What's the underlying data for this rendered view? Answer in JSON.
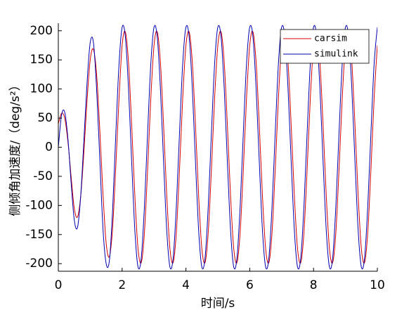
{
  "chart_data": {
    "type": "line",
    "x_label": "时间/s",
    "y_label": "侧倾角加速度/（deg/s²）",
    "x": [
      0,
      0.1,
      0.2,
      0.3,
      0.4,
      0.5,
      0.6,
      0.7,
      0.8,
      0.9,
      1,
      1.1,
      1.2,
      1.3,
      1.4,
      1.5,
      1.6,
      1.7,
      1.8,
      1.9,
      2,
      2.1,
      2.2,
      2.3,
      2.4,
      2.5,
      2.6,
      2.7,
      2.8,
      2.9,
      3,
      3.1,
      3.2,
      3.3,
      3.4,
      3.5,
      3.6,
      3.7,
      3.8,
      3.9,
      4,
      4.1,
      4.2,
      4.3,
      4.4,
      4.5,
      4.6,
      4.7,
      4.8,
      4.9,
      5,
      5.1,
      5.2,
      5.3,
      5.4,
      5.5,
      5.6,
      5.7,
      5.8,
      5.9,
      6,
      6.1,
      6.2,
      6.3,
      6.4,
      6.5,
      6.6,
      6.7,
      6.8,
      6.9,
      7,
      7.1,
      7.2,
      7.3,
      7.4,
      7.5,
      7.6,
      7.7,
      7.8,
      7.9,
      8,
      8.1,
      8.2,
      8.3,
      8.4,
      8.5,
      8.6,
      8.7,
      8.8,
      8.9,
      9,
      9.1,
      9.2,
      9.3,
      9.4,
      9.5,
      9.6,
      9.7,
      9.8,
      9.9,
      10
    ],
    "series": [
      {
        "name": "carsim",
        "color": "#d40000",
        "values": [
          40,
          58,
          50,
          10,
          -50,
          -105,
          -120,
          -85,
          -10,
          80,
          150,
          168,
          125,
          30,
          -80,
          -165,
          -188,
          -140,
          -35,
          80,
          175,
          198,
          146,
          37,
          -85,
          -175,
          -198,
          -146,
          -37,
          85,
          175,
          198,
          146,
          37,
          -85,
          -175,
          -198,
          -146,
          -37,
          85,
          175,
          198,
          146,
          37,
          -85,
          -175,
          -198,
          -146,
          -37,
          85,
          175,
          198,
          146,
          37,
          -85,
          -175,
          -198,
          -146,
          -37,
          85,
          175,
          198,
          146,
          37,
          -85,
          -175,
          -198,
          -146,
          -37,
          85,
          175,
          198,
          146,
          37,
          -85,
          -175,
          -198,
          -146,
          -37,
          85,
          175,
          198,
          146,
          37,
          -85,
          -175,
          -198,
          -146,
          -37,
          85,
          175,
          198,
          146,
          37,
          -85,
          -175,
          -198,
          -146,
          -37,
          85,
          175
        ]
      },
      {
        "name": "simulink",
        "color": "#0000b0",
        "values": [
          0,
          55,
          60,
          15,
          -60,
          -125,
          -138,
          -85,
          10,
          110,
          180,
          180,
          100,
          -20,
          -140,
          -200,
          -195,
          -110,
          20,
          140,
          206,
          190,
          101,
          -26,
          -144,
          -206,
          -190,
          -101,
          26,
          144,
          206,
          190,
          101,
          -26,
          -144,
          -206,
          -190,
          -101,
          26,
          144,
          206,
          190,
          101,
          -26,
          -144,
          -206,
          -190,
          -101,
          26,
          144,
          206,
          190,
          101,
          -26,
          -144,
          -206,
          -190,
          -101,
          26,
          144,
          206,
          190,
          101,
          -26,
          -144,
          -206,
          -190,
          -101,
          26,
          144,
          206,
          190,
          101,
          -26,
          -144,
          -206,
          -190,
          -101,
          26,
          144,
          206,
          190,
          101,
          -26,
          -144,
          -206,
          -190,
          -101,
          26,
          144,
          206,
          190,
          101,
          -26,
          -144,
          -206,
          -190,
          -101,
          26,
          144,
          206
        ]
      }
    ],
    "xlim": [
      0,
      10
    ],
    "xticks": [
      0,
      2,
      4,
      6,
      8,
      10
    ],
    "ylim": [
      -213,
      213
    ],
    "yticks": [
      -200,
      -150,
      -100,
      -50,
      0,
      50,
      100,
      150,
      200
    ],
    "legend": "top-right"
  }
}
